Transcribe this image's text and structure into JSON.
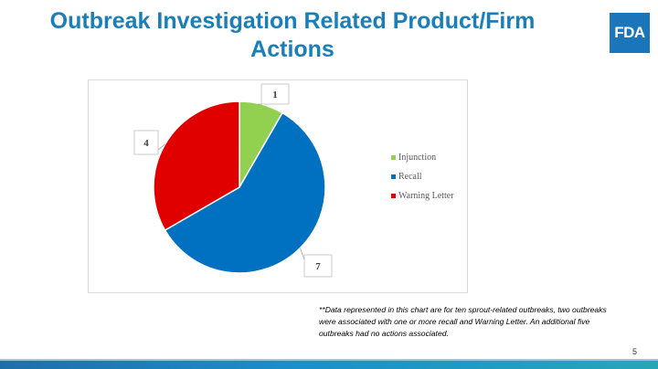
{
  "slide": {
    "title_line1": "Outbreak Investigation Related Product/Firm",
    "title_line2": "Actions",
    "logo_text": "FDA",
    "footnote": "**Data represented in this chart are for ten sprout-related outbreaks, two outbreaks were associated with one or more recall and Warning Letter. An additional five outbreaks had no actions associated.",
    "page_number": "5"
  },
  "colors": {
    "title": "#1a7fb8",
    "logo": "#1b75bb",
    "injunction": "#92d050",
    "recall": "#0070c0",
    "warning_letter": "#e00000"
  },
  "chart_data": {
    "type": "pie",
    "title": "",
    "categories": [
      "Injunction",
      "Recall",
      "Warning Letter"
    ],
    "values": [
      1,
      7,
      4
    ],
    "data_labels": [
      "1",
      "7",
      "4"
    ],
    "colors": [
      "#92d050",
      "#0070c0",
      "#e00000"
    ],
    "start_angle_deg": 0,
    "direction": "clockwise",
    "legend_position": "right"
  }
}
